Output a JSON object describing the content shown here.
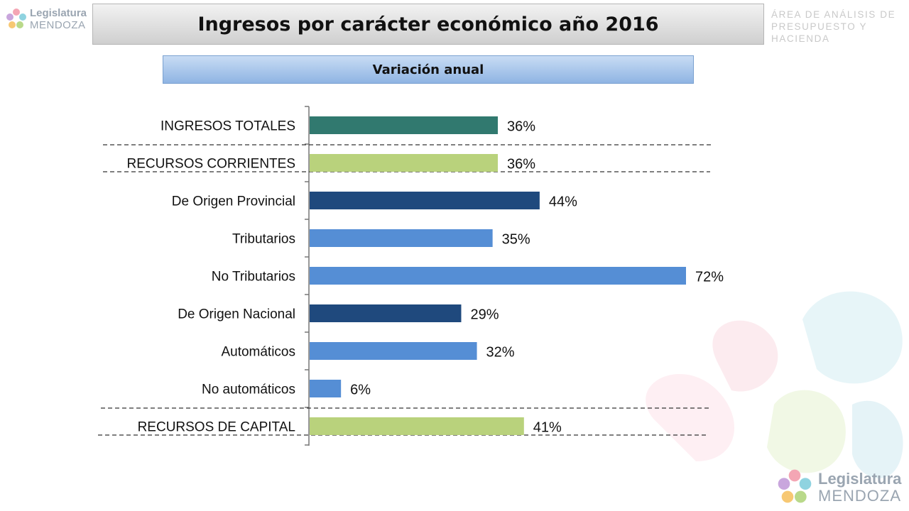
{
  "header": {
    "logo_line1": "Legislatura",
    "logo_line2": "MENDOZA",
    "title": "Ingresos por carácter económico año 2016",
    "area_line1": "ÁREA DE ANÁLISIS DE",
    "area_line2": "PRESUPUESTO Y HACIENDA"
  },
  "subtitle": "Variación anual",
  "footer": {
    "logo_line1": "Legislatura",
    "logo_line2": "MENDOZA"
  },
  "colors": {
    "teal": "#31796f",
    "light_green": "#b9d27c",
    "dark_blue": "#1f497d",
    "mid_blue": "#558ed5"
  },
  "chart_data": {
    "type": "bar",
    "orientation": "horizontal",
    "title": "Ingresos por carácter económico año 2016",
    "subtitle": "Variación anual",
    "categories": [
      "INGRESOS TOTALES",
      "RECURSOS CORRIENTES",
      "De Origen Provincial",
      "Tributarios",
      "No Tributarios",
      "De Origen Nacional",
      "Automáticos",
      "No automáticos",
      "RECURSOS DE CAPITAL"
    ],
    "values": [
      36,
      36,
      44,
      35,
      72,
      29,
      32,
      6,
      41
    ],
    "value_labels": [
      "36%",
      "36%",
      "44%",
      "35%",
      "72%",
      "29%",
      "32%",
      "6%",
      "41%"
    ],
    "bar_colors": [
      "#31796f",
      "#b9d27c",
      "#1f497d",
      "#558ed5",
      "#558ed5",
      "#1f497d",
      "#558ed5",
      "#558ed5",
      "#b9d27c"
    ],
    "xlim": [
      0,
      72
    ],
    "unit": "%",
    "grid": false,
    "legend": "none"
  }
}
